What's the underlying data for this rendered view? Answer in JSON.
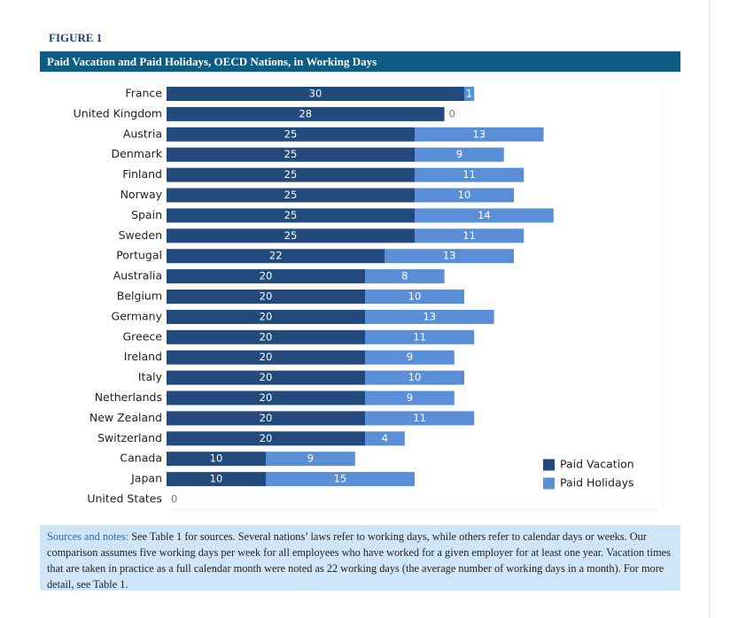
{
  "figure_label": "FIGURE 1",
  "chart_data": {
    "type": "stacked-bar-horizontal",
    "title": "Paid Vacation and Paid Holidays, OECD Nations, in Working Days",
    "categories": [
      "France",
      "United Kingdom",
      "Austria",
      "Denmark",
      "Finland",
      "Norway",
      "Spain",
      "Sweden",
      "Portugal",
      "Australia",
      "Belgium",
      "Germany",
      "Greece",
      "Ireland",
      "Italy",
      "Netherlands",
      "New Zealand",
      "Switzerland",
      "Canada",
      "Japan",
      "United States"
    ],
    "series": [
      {
        "name": "Paid Vacation",
        "color": "#234a7c",
        "values": [
          30,
          28,
          25,
          25,
          25,
          25,
          25,
          25,
          22,
          20,
          20,
          20,
          20,
          20,
          20,
          20,
          20,
          20,
          10,
          10,
          0
        ]
      },
      {
        "name": "Paid Holidays",
        "color": "#5a8fd8",
        "values": [
          1,
          0,
          13,
          9,
          11,
          10,
          14,
          11,
          13,
          8,
          10,
          13,
          11,
          9,
          10,
          9,
          11,
          4,
          9,
          15,
          null
        ]
      }
    ],
    "xlim": [
      0,
      50
    ],
    "legend": "lower right"
  },
  "notes_label": "Sources and notes:",
  "notes": "See Table 1 for sources. Several nations’ laws refer to working days, while others refer to calendar days or weeks. Our comparison assumes five working days per week for all employees who have worked for a given employer for at least one year. Vacation times that are taken in practice as a full calendar month were noted as 22 working days (the average number of working days in a month). For more detail, see Table 1."
}
